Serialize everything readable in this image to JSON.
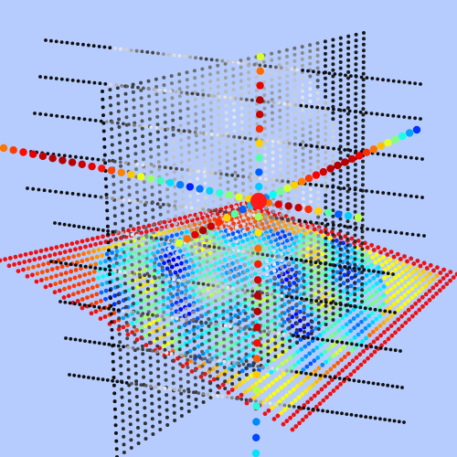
{
  "scene": {
    "background": "#b6ccfe",
    "planes": [
      {
        "name": "axial-slice",
        "colormap": "jet",
        "border_color": "#ee1111"
      },
      {
        "name": "sagittal-slice",
        "colormap": "gray",
        "row_color": "#111111"
      },
      {
        "name": "coronal-slice",
        "colormap": "gray",
        "row_color": "#111111"
      }
    ],
    "cursor": {
      "color": "#ff1a1a",
      "colormap": "jet"
    }
  }
}
